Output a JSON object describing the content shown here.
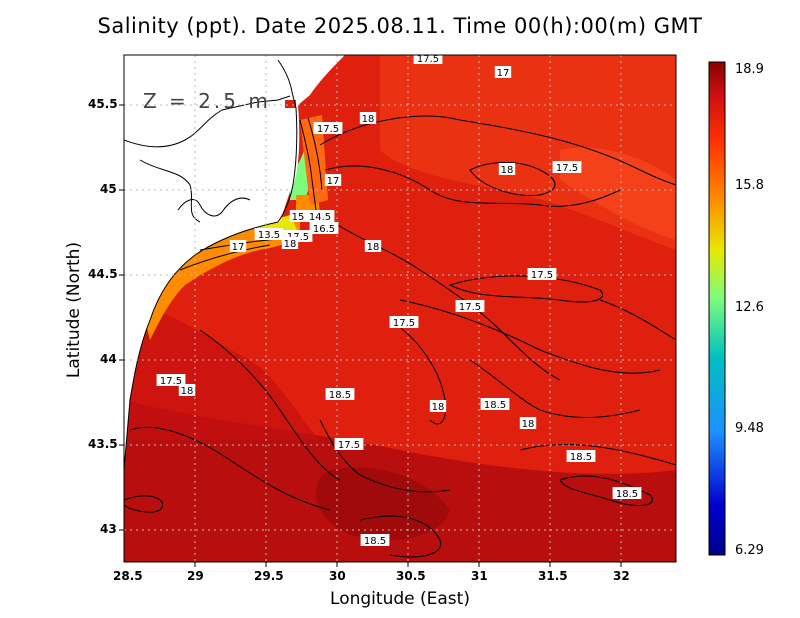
{
  "title": "Salinity (ppt). Date 2025.08.11. Time 00(h):00(m) GMT",
  "depth_label": "Z = 2.5 m",
  "xlabel": "Longitude (East)",
  "ylabel": "Latitude (North)",
  "x_ticks": [
    "28.5",
    "29",
    "29.5",
    "30",
    "30.5",
    "31",
    "31.5",
    "32"
  ],
  "y_ticks": [
    "45.5",
    "45",
    "44.5",
    "44",
    "43.5",
    "43"
  ],
  "colorbar": {
    "labels": [
      "18.9",
      "15.8",
      "12.6",
      "9.48",
      "6.29"
    ],
    "colors": [
      "#8b0000",
      "#d01010",
      "#ff3000",
      "#ff8c00",
      "#e8e800",
      "#7cfc7c",
      "#00c0c0",
      "#1e90ff",
      "#0000cd",
      "#00008b"
    ]
  },
  "contour_labels": [
    "17.5",
    "17",
    "18",
    "17.5",
    "17",
    "18",
    "17.5",
    "15",
    "14.5",
    "16.5",
    "17.5",
    "13.5",
    "18",
    "17",
    "18",
    "17.5",
    "17.5",
    "17.5",
    "18",
    "18.5",
    "18",
    "17.5",
    "17.5",
    "18",
    "18.5",
    "18.5",
    "18.5",
    "18.5"
  ],
  "colors": {
    "land": "#ffffff",
    "sea_main": "#e0200e",
    "sea_deep": "#b00e0e",
    "coastal": "#ff8c00"
  }
}
